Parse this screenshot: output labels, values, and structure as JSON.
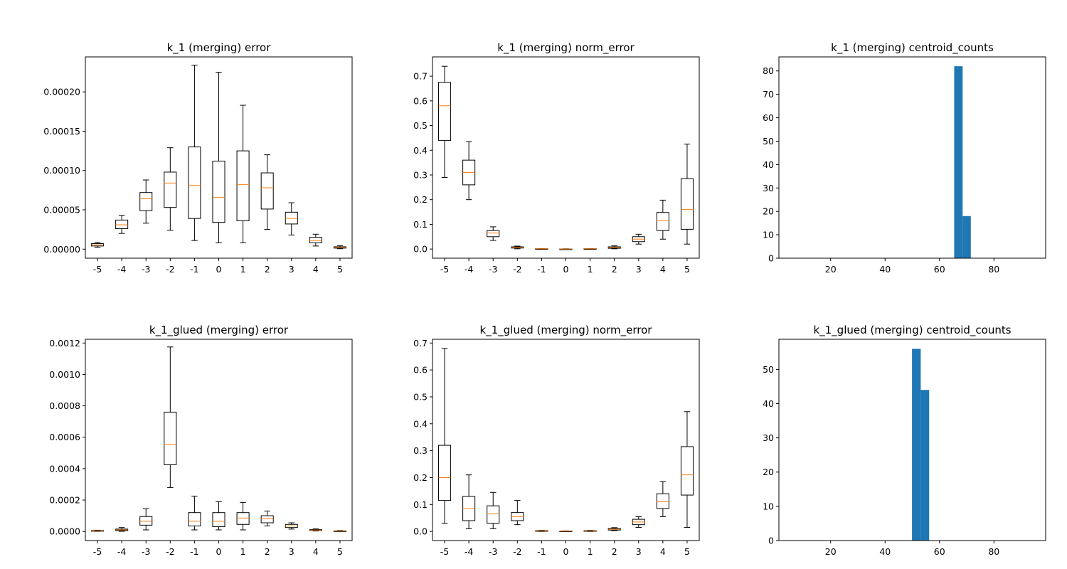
{
  "figure": {
    "background": "#ffffff"
  },
  "colors": {
    "box": "#000000",
    "median": "#ff7f0e",
    "bar": "#1f77b4",
    "axis": "#000000"
  },
  "chart_data": [
    {
      "id": "k1-error",
      "type": "box",
      "title": "k_1 (merging) error",
      "categories": [
        "-5",
        "-4",
        "-3",
        "-2",
        "-1",
        "0",
        "1",
        "2",
        "3",
        "4",
        "5"
      ],
      "ylim": [
        -1.15e-05,
        0.0002445
      ],
      "yticks": [
        0.0,
        5e-05,
        0.0001,
        0.00015,
        0.0002
      ],
      "ytick_labels": [
        "0.00000",
        "0.00005",
        "0.00010",
        "0.00015",
        "0.00020"
      ],
      "boxes": [
        {
          "whislo": 2.5e-06,
          "q1": 4e-06,
          "med": 5.5e-06,
          "q3": 7e-06,
          "whishi": 8.5e-06
        },
        {
          "whislo": 2e-05,
          "q1": 2.6e-05,
          "med": 3.1e-05,
          "q3": 3.7e-05,
          "whishi": 4.3e-05
        },
        {
          "whislo": 3.3e-05,
          "q1": 4.9e-05,
          "med": 6.4e-05,
          "q3": 7.2e-05,
          "whishi": 8.8e-05
        },
        {
          "whislo": 2.4e-05,
          "q1": 5.3e-05,
          "med": 8.4e-05,
          "q3": 9.8e-05,
          "whishi": 0.000129
        },
        {
          "whislo": 1.1e-05,
          "q1": 3.9e-05,
          "med": 8.1e-05,
          "q3": 0.00013,
          "whishi": 0.000234
        },
        {
          "whislo": 8e-06,
          "q1": 3.4e-05,
          "med": 6.6e-05,
          "q3": 0.000112,
          "whishi": 0.000225
        },
        {
          "whislo": 8e-06,
          "q1": 3.6e-05,
          "med": 8.2e-05,
          "q3": 0.000125,
          "whishi": 0.000183
        },
        {
          "whislo": 2.5e-05,
          "q1": 5.1e-05,
          "med": 7.8e-05,
          "q3": 9.7e-05,
          "whishi": 0.00012
        },
        {
          "whislo": 1.8e-05,
          "q1": 3.2e-05,
          "med": 3.9e-05,
          "q3": 4.7e-05,
          "whishi": 5.9e-05
        },
        {
          "whislo": 4e-06,
          "q1": 8e-06,
          "med": 1.1e-05,
          "q3": 1.5e-05,
          "whishi": 1.9e-05
        },
        {
          "whislo": 5e-07,
          "q1": 1.3e-06,
          "med": 2e-06,
          "q3": 3e-06,
          "whishi": 4.5e-06
        }
      ]
    },
    {
      "id": "k1-norm-error",
      "type": "box",
      "title": "k_1 (merging) norm_error",
      "categories": [
        "-5",
        "-4",
        "-3",
        "-2",
        "-1",
        "0",
        "1",
        "2",
        "3",
        "4",
        "5"
      ],
      "ylim": [
        -0.037,
        0.778
      ],
      "yticks": [
        0.0,
        0.1,
        0.2,
        0.3,
        0.4,
        0.5,
        0.6,
        0.7
      ],
      "ytick_labels": [
        "0.0",
        "0.1",
        "0.2",
        "0.3",
        "0.4",
        "0.5",
        "0.6",
        "0.7"
      ],
      "boxes": [
        {
          "whislo": 0.29,
          "q1": 0.44,
          "med": 0.58,
          "q3": 0.675,
          "whishi": 0.74
        },
        {
          "whislo": 0.2,
          "q1": 0.26,
          "med": 0.31,
          "q3": 0.36,
          "whishi": 0.435
        },
        {
          "whislo": 0.035,
          "q1": 0.05,
          "med": 0.065,
          "q3": 0.075,
          "whishi": 0.09
        },
        {
          "whislo": 0.001,
          "q1": 0.004,
          "med": 0.006,
          "q3": 0.009,
          "whishi": 0.012
        },
        {
          "whislo": 0.0,
          "q1": 0.0005,
          "med": 0.001,
          "q3": 0.0015,
          "whishi": 0.002
        },
        {
          "whislo": 0.0,
          "q1": 0.0,
          "med": 0.0,
          "q3": 0.0005,
          "whishi": 0.001
        },
        {
          "whislo": 0.0,
          "q1": 0.0005,
          "med": 0.001,
          "q3": 0.0015,
          "whishi": 0.002
        },
        {
          "whislo": 0.001,
          "q1": 0.003,
          "med": 0.006,
          "q3": 0.009,
          "whishi": 0.013
        },
        {
          "whislo": 0.02,
          "q1": 0.03,
          "med": 0.04,
          "q3": 0.05,
          "whishi": 0.06
        },
        {
          "whislo": 0.04,
          "q1": 0.075,
          "med": 0.115,
          "q3": 0.148,
          "whishi": 0.198
        },
        {
          "whislo": 0.02,
          "q1": 0.08,
          "med": 0.16,
          "q3": 0.285,
          "whishi": 0.425
        }
      ]
    },
    {
      "id": "k1-centroid-counts",
      "type": "histogram",
      "title": "k_1 (merging) centroid_counts",
      "xlim": [
        1,
        99
      ],
      "ylim": [
        0,
        86
      ],
      "xticks": [
        20,
        40,
        60,
        80
      ],
      "xtick_labels": [
        "20",
        "40",
        "60",
        "80"
      ],
      "yticks": [
        0,
        10,
        20,
        30,
        40,
        50,
        60,
        70,
        80
      ],
      "ytick_labels": [
        "0",
        "10",
        "20",
        "30",
        "40",
        "50",
        "60",
        "70",
        "80"
      ],
      "bins": [
        {
          "x0": 65.4,
          "x1": 68.5,
          "count": 82
        },
        {
          "x0": 68.5,
          "x1": 71.5,
          "count": 18
        }
      ]
    },
    {
      "id": "k1g-error",
      "type": "box",
      "title": "k_1_glued (merging) error",
      "categories": [
        "-5",
        "-4",
        "-3",
        "-2",
        "-1",
        "0",
        "1",
        "2",
        "3",
        "4",
        "5"
      ],
      "ylim": [
        -5.8e-05,
        0.001224
      ],
      "yticks": [
        0.0,
        0.0002,
        0.0004,
        0.0006,
        0.0008,
        0.001,
        0.0012
      ],
      "ytick_labels": [
        "0.0000",
        "0.0002",
        "0.0004",
        "0.0006",
        "0.0008",
        "0.0010",
        "0.0012"
      ],
      "boxes": [
        {
          "whislo": 1e-06,
          "q1": 2e-06,
          "med": 4e-06,
          "q3": 6e-06,
          "whishi": 8e-06
        },
        {
          "whislo": 1e-06,
          "q1": 5e-06,
          "med": 1e-05,
          "q3": 1.5e-05,
          "whishi": 2.5e-05
        },
        {
          "whislo": 1e-05,
          "q1": 4e-05,
          "med": 6.5e-05,
          "q3": 9.5e-05,
          "whishi": 0.000145
        },
        {
          "whislo": 0.00028,
          "q1": 0.000425,
          "med": 0.000555,
          "q3": 0.00076,
          "whishi": 0.001175
        },
        {
          "whislo": 1e-05,
          "q1": 3.5e-05,
          "med": 6.5e-05,
          "q3": 0.00012,
          "whishi": 0.000225
        },
        {
          "whislo": 1e-05,
          "q1": 3e-05,
          "med": 6.5e-05,
          "q3": 0.00012,
          "whishi": 0.00019
        },
        {
          "whislo": 1e-05,
          "q1": 4.5e-05,
          "med": 8.5e-05,
          "q3": 0.00012,
          "whishi": 0.000185
        },
        {
          "whislo": 3.5e-05,
          "q1": 5.5e-05,
          "med": 8e-05,
          "q3": 0.0001,
          "whishi": 0.00013
        },
        {
          "whislo": 1.5e-05,
          "q1": 2.5e-05,
          "med": 3.5e-05,
          "q3": 4.5e-05,
          "whishi": 5.5e-05
        },
        {
          "whislo": 3e-06,
          "q1": 6e-06,
          "med": 9e-06,
          "q3": 1.2e-05,
          "whishi": 1.6e-05
        },
        {
          "whislo": 1e-06,
          "q1": 2e-06,
          "med": 3e-06,
          "q3": 4e-06,
          "whishi": 6e-06
        }
      ]
    },
    {
      "id": "k1g-norm-error",
      "type": "box",
      "title": "k_1_glued (merging) norm_error",
      "categories": [
        "-5",
        "-4",
        "-3",
        "-2",
        "-1",
        "0",
        "1",
        "2",
        "3",
        "4",
        "5"
      ],
      "ylim": [
        -0.034,
        0.714
      ],
      "yticks": [
        0.0,
        0.1,
        0.2,
        0.3,
        0.4,
        0.5,
        0.6,
        0.7
      ],
      "ytick_labels": [
        "0.0",
        "0.1",
        "0.2",
        "0.3",
        "0.4",
        "0.5",
        "0.6",
        "0.7"
      ],
      "boxes": [
        {
          "whislo": 0.03,
          "q1": 0.115,
          "med": 0.2,
          "q3": 0.32,
          "whishi": 0.68
        },
        {
          "whislo": 0.01,
          "q1": 0.04,
          "med": 0.085,
          "q3": 0.13,
          "whishi": 0.21
        },
        {
          "whislo": 0.01,
          "q1": 0.03,
          "med": 0.065,
          "q3": 0.095,
          "whishi": 0.145
        },
        {
          "whislo": 0.025,
          "q1": 0.04,
          "med": 0.055,
          "q3": 0.07,
          "whishi": 0.115
        },
        {
          "whislo": 0.0,
          "q1": 0.001,
          "med": 0.002,
          "q3": 0.003,
          "whishi": 0.004
        },
        {
          "whislo": 0.0,
          "q1": 0.0005,
          "med": 0.001,
          "q3": 0.0015,
          "whishi": 0.002
        },
        {
          "whislo": 0.0,
          "q1": 0.001,
          "med": 0.002,
          "q3": 0.003,
          "whishi": 0.004
        },
        {
          "whislo": 0.003,
          "q1": 0.005,
          "med": 0.008,
          "q3": 0.011,
          "whishi": 0.014
        },
        {
          "whislo": 0.015,
          "q1": 0.025,
          "med": 0.035,
          "q3": 0.045,
          "whishi": 0.055
        },
        {
          "whislo": 0.055,
          "q1": 0.085,
          "med": 0.11,
          "q3": 0.14,
          "whishi": 0.185
        },
        {
          "whislo": 0.015,
          "q1": 0.135,
          "med": 0.21,
          "q3": 0.315,
          "whishi": 0.445
        }
      ]
    },
    {
      "id": "k1g-centroid-counts",
      "type": "histogram",
      "title": "k_1_glued (merging) centroid_counts",
      "xlim": [
        1,
        99
      ],
      "ylim": [
        0,
        58.8
      ],
      "xticks": [
        20,
        40,
        60,
        80
      ],
      "xtick_labels": [
        "20",
        "40",
        "60",
        "80"
      ],
      "yticks": [
        0,
        10,
        20,
        30,
        40,
        50
      ],
      "ytick_labels": [
        "0",
        "10",
        "20",
        "30",
        "40",
        "50"
      ],
      "bins": [
        {
          "x0": 49.9,
          "x1": 53.1,
          "count": 56
        },
        {
          "x0": 53.1,
          "x1": 56.2,
          "count": 44
        }
      ]
    }
  ]
}
